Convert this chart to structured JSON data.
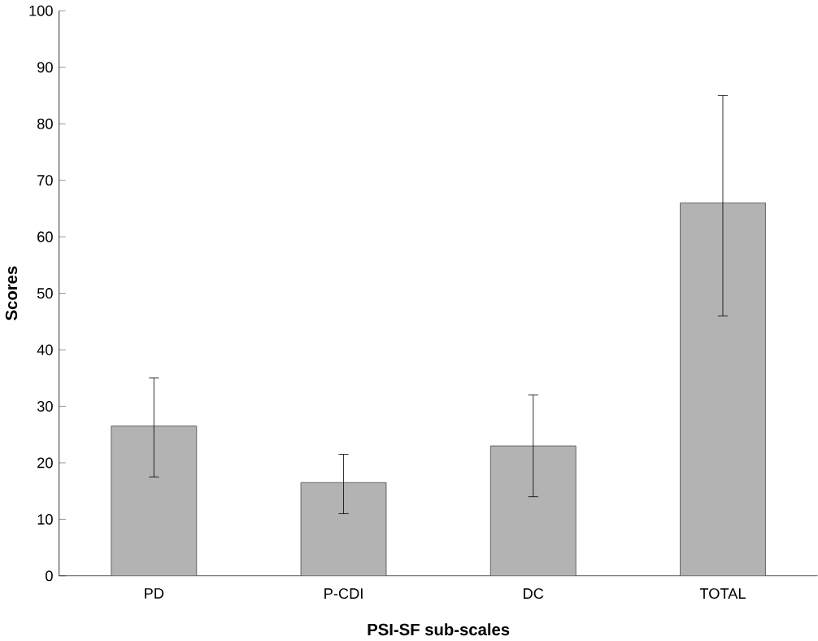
{
  "chart_data": {
    "type": "bar",
    "xlabel": "PSI-SF sub-scales",
    "ylabel": "Scores",
    "categories": [
      "PD",
      "P-CDI",
      "DC",
      "TOTAL"
    ],
    "values": [
      26.5,
      16.5,
      23,
      66
    ],
    "errors": [
      [
        17.5,
        35
      ],
      [
        11,
        21.5
      ],
      [
        14,
        32
      ],
      [
        46,
        85
      ]
    ],
    "color": "#b3b3b3",
    "ylim": [
      0,
      100
    ],
    "yticks": [
      0,
      10,
      20,
      30,
      40,
      50,
      60,
      70,
      80,
      90,
      100
    ]
  }
}
